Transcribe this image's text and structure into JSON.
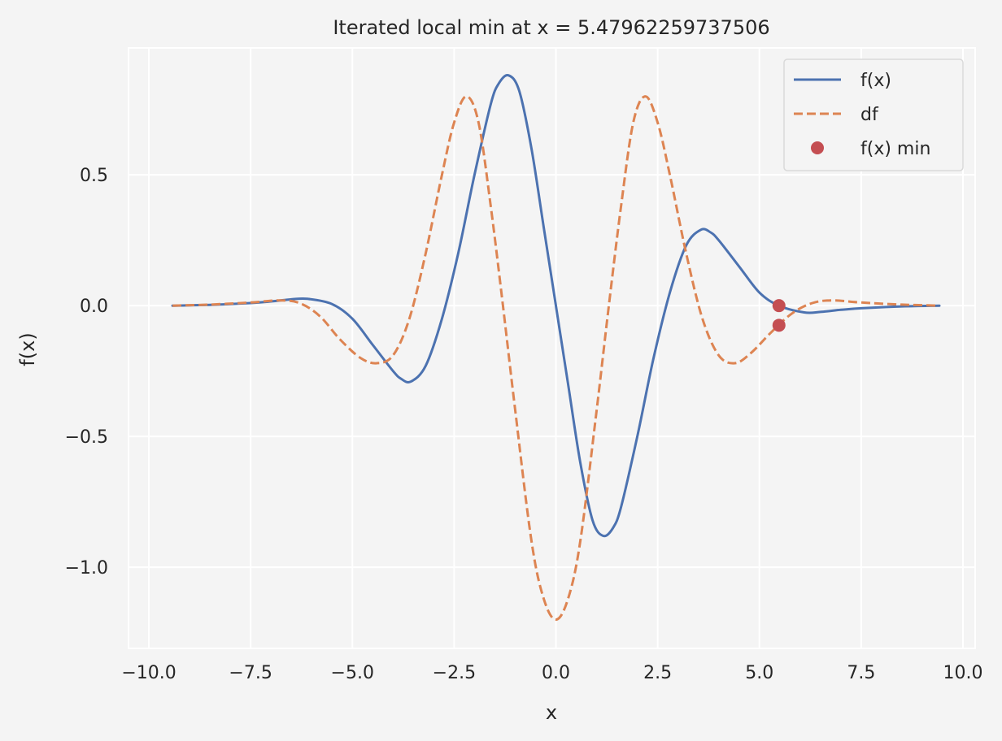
{
  "chart_data": {
    "type": "line",
    "title": "Iterated local min at x = 5.47962259737506",
    "xlabel": "x",
    "ylabel": "f(x)",
    "xlim": [
      -10.5,
      10.3
    ],
    "ylim": [
      -1.31,
      0.985
    ],
    "xticks": [
      -10.0,
      -7.5,
      -5.0,
      -2.5,
      0.0,
      2.5,
      5.0,
      7.5,
      10.0
    ],
    "xtick_labels": [
      "−10.0",
      "−7.5",
      "−5.0",
      "−2.5",
      "0.0",
      "2.5",
      "5.0",
      "7.5",
      "10.0"
    ],
    "yticks": [
      -1.0,
      -0.5,
      0.0,
      0.5
    ],
    "ytick_labels": [
      "−1.0",
      "−0.5",
      "0.0",
      "0.5"
    ],
    "grid": true,
    "legend_position": "upper right",
    "series": [
      {
        "name": "f(x)",
        "style": "solid",
        "color": "#4c72b0",
        "x": [
          -9.42,
          -8.5,
          -7.5,
          -7.0,
          -6.5,
          -6.1,
          -5.5,
          -5.0,
          -4.5,
          -4.0,
          -3.8,
          -3.56,
          -3.2,
          -2.8,
          -2.4,
          -2.0,
          -1.6,
          -1.4,
          -1.16,
          -0.9,
          -0.6,
          -0.3,
          0.0,
          0.3,
          0.6,
          0.9,
          1.16,
          1.4,
          1.6,
          2.0,
          2.4,
          2.8,
          3.2,
          3.56,
          3.8,
          4.0,
          4.5,
          5.0,
          5.48,
          6.1,
          6.5,
          7.0,
          7.5,
          8.5,
          9.42
        ],
        "y": [
          0.0,
          0.003,
          0.01,
          0.016,
          0.024,
          0.026,
          0.006,
          -0.05,
          -0.15,
          -0.25,
          -0.28,
          -0.29,
          -0.23,
          -0.05,
          0.2,
          0.5,
          0.77,
          0.85,
          0.88,
          0.82,
          0.6,
          0.3,
          0.0,
          -0.3,
          -0.6,
          -0.82,
          -0.88,
          -0.85,
          -0.77,
          -0.5,
          -0.2,
          0.05,
          0.23,
          0.29,
          0.28,
          0.25,
          0.15,
          0.05,
          0.0,
          -0.026,
          -0.024,
          -0.016,
          -0.01,
          -0.003,
          0.0
        ]
      },
      {
        "name": "df",
        "style": "dashed",
        "color": "#dd8452",
        "x": [
          -9.42,
          -8.5,
          -7.5,
          -6.8,
          -6.3,
          -5.8,
          -5.3,
          -4.8,
          -4.4,
          -4.0,
          -3.6,
          -3.2,
          -2.8,
          -2.5,
          -2.2,
          -1.9,
          -1.6,
          -1.3,
          -1.0,
          -0.6,
          -0.3,
          0.0,
          0.3,
          0.6,
          1.0,
          1.3,
          1.6,
          1.9,
          2.2,
          2.5,
          2.8,
          3.2,
          3.6,
          4.0,
          4.4,
          4.8,
          5.3,
          5.8,
          6.3,
          6.8,
          7.5,
          8.5,
          9.42
        ],
        "y": [
          0.0,
          0.004,
          0.012,
          0.02,
          0.01,
          -0.04,
          -0.13,
          -0.2,
          -0.22,
          -0.19,
          -0.05,
          0.2,
          0.5,
          0.7,
          0.8,
          0.7,
          0.38,
          0.0,
          -0.4,
          -0.9,
          -1.12,
          -1.2,
          -1.12,
          -0.9,
          -0.4,
          0.0,
          0.38,
          0.7,
          0.8,
          0.7,
          0.5,
          0.2,
          -0.05,
          -0.19,
          -0.22,
          -0.18,
          -0.1,
          -0.03,
          0.01,
          0.02,
          0.012,
          0.004,
          0.0
        ]
      },
      {
        "name": "f(x) min",
        "style": "marker",
        "color": "#c44e52",
        "x": [
          5.48,
          5.48
        ],
        "y": [
          0.0,
          -0.075
        ]
      }
    ]
  }
}
